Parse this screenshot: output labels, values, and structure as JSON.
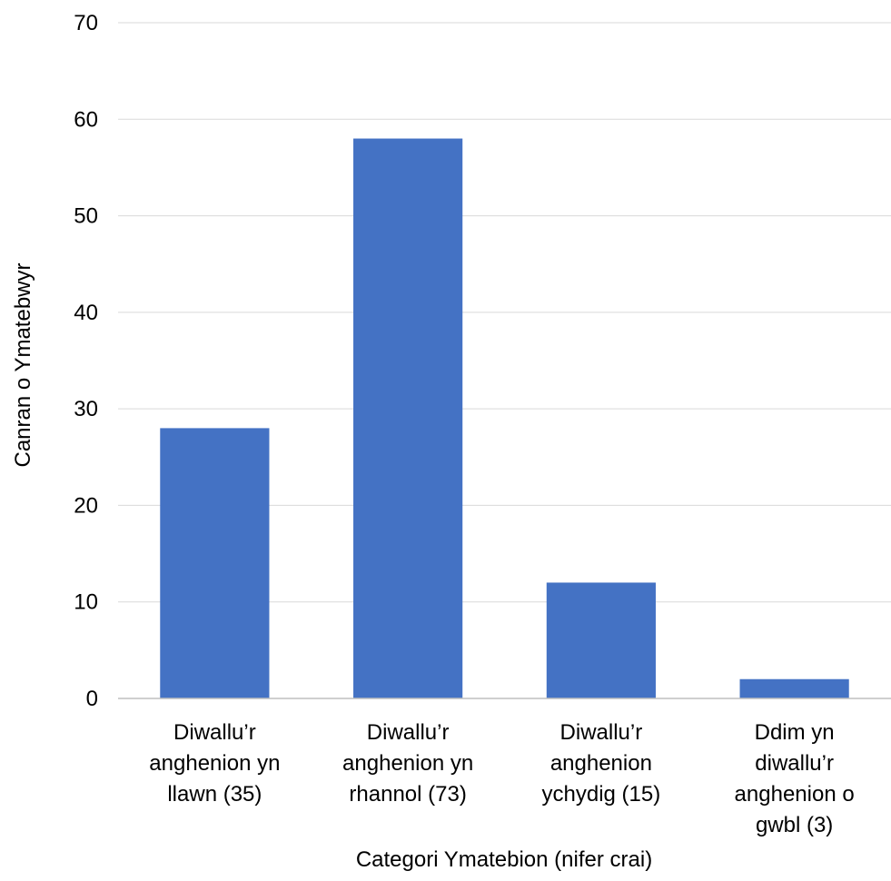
{
  "chart_data": {
    "type": "bar",
    "title": "",
    "xlabel": "Categori Ymatebion  (nifer crai)",
    "ylabel": "Canran o Ymatebwyr",
    "categories": [
      [
        "Diwallu’r",
        "anghenion  yn",
        "llawn  (35)"
      ],
      [
        "Diwallu’r",
        "anghenion  yn",
        "rhannol (73)"
      ],
      [
        "Diwallu’r",
        "anghenion",
        "ychydig  (15)"
      ],
      [
        "Ddim  yn",
        "diwallu’r",
        "anghenion  o",
        "gwbl  (3)"
      ]
    ],
    "values": [
      28,
      58,
      12,
      2
    ],
    "ylim": [
      0,
      70
    ],
    "yticks": [
      0,
      10,
      20,
      30,
      40,
      50,
      60,
      70
    ],
    "grid": true,
    "legend": "none",
    "colors": {
      "bar": "#4472C4",
      "grid": "#D9D9D9",
      "axis": "#BFBFBF"
    }
  }
}
